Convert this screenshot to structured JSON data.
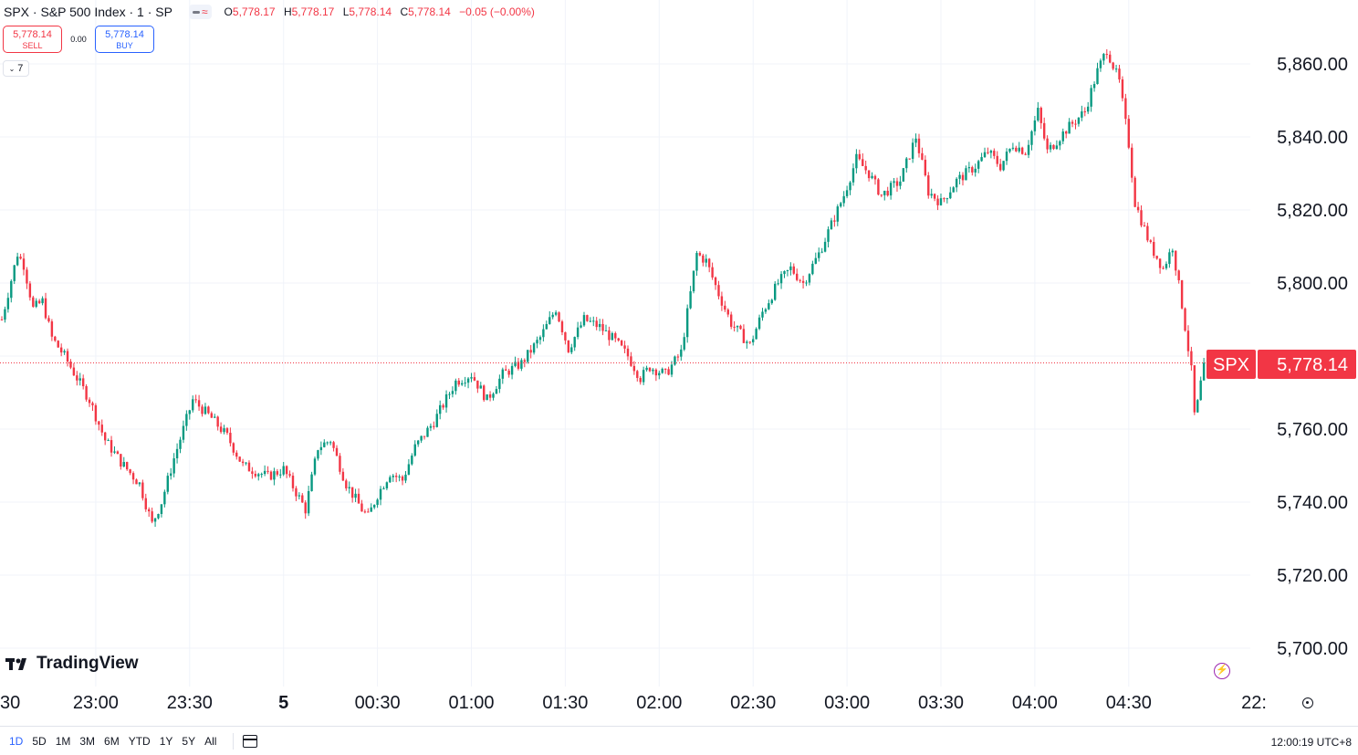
{
  "header": {
    "symbol_title": "SPX · S&P 500 Index · 1 · SP",
    "ohlc": {
      "o_label": "O",
      "o": "5,778.17",
      "h_label": "H",
      "h": "5,778.17",
      "l_label": "L",
      "l": "5,778.14",
      "c_label": "C",
      "c": "5,778.14",
      "change": "−0.05 (−0.00%)"
    }
  },
  "trade": {
    "sell_price": "5,778.14",
    "sell_label": "SELL",
    "spread": "0.00",
    "buy_price": "5,778.14",
    "buy_label": "BUY"
  },
  "indicators_toggle": {
    "count": "7"
  },
  "branding": {
    "logo_text": "TradingView"
  },
  "price_label": {
    "symbol": "SPX",
    "price": "5,778.14"
  },
  "bottom": {
    "ranges": [
      "1D",
      "5D",
      "1M",
      "3M",
      "6M",
      "YTD",
      "1Y",
      "5Y",
      "All"
    ],
    "active_range": "1D",
    "clock": "12:00:19 UTC+8"
  },
  "colors": {
    "up": "#089981",
    "down": "#f23645",
    "grid": "#f0f3fa",
    "accent": "#2962ff"
  },
  "chart_data": {
    "type": "candlestick",
    "y_ticks": [
      5700,
      5720,
      5740,
      5760,
      5780,
      5800,
      5820,
      5840,
      5860
    ],
    "y_tick_labels": [
      "5,700.00",
      "5,720.00",
      "5,740.00",
      "5,760.00",
      "5,780.00",
      "5,800.00",
      "5,820.00",
      "5,840.00",
      "5,860.00"
    ],
    "ylim": [
      5690,
      5877
    ],
    "x_time_labels": [
      {
        "label": "30",
        "t": 0
      },
      {
        "label": "23:00",
        "t": 30
      },
      {
        "label": "23:30",
        "t": 60
      },
      {
        "label": "5",
        "t": 90
      },
      {
        "label": "00:30",
        "t": 120
      },
      {
        "label": "01:00",
        "t": 150
      },
      {
        "label": "01:30",
        "t": 180
      },
      {
        "label": "02:00",
        "t": 210
      },
      {
        "label": "02:30",
        "t": 240
      },
      {
        "label": "03:00",
        "t": 270
      },
      {
        "label": "03:30",
        "t": 300
      },
      {
        "label": "04:00",
        "t": 330
      },
      {
        "label": "04:30",
        "t": 360
      },
      {
        "label": "22:",
        "t": 400
      }
    ],
    "current_price": 5778.14,
    "keypoints": [
      [
        0,
        5790
      ],
      [
        5,
        5808
      ],
      [
        7,
        5805
      ],
      [
        10,
        5793
      ],
      [
        13,
        5795
      ],
      [
        16,
        5785
      ],
      [
        20,
        5780
      ],
      [
        28,
        5768
      ],
      [
        33,
        5757
      ],
      [
        38,
        5751
      ],
      [
        44,
        5745
      ],
      [
        48,
        5734
      ],
      [
        51,
        5740
      ],
      [
        55,
        5752
      ],
      [
        61,
        5768
      ],
      [
        67,
        5763
      ],
      [
        72,
        5758
      ],
      [
        77,
        5750
      ],
      [
        85,
        5747
      ],
      [
        90,
        5749
      ],
      [
        97,
        5738
      ],
      [
        101,
        5755
      ],
      [
        105,
        5757
      ],
      [
        110,
        5745
      ],
      [
        115,
        5738
      ],
      [
        117,
        5736
      ],
      [
        120,
        5742
      ],
      [
        124,
        5748
      ],
      [
        128,
        5746
      ],
      [
        132,
        5755
      ],
      [
        138,
        5762
      ],
      [
        145,
        5773
      ],
      [
        150,
        5775
      ],
      [
        155,
        5768
      ],
      [
        160,
        5775
      ],
      [
        166,
        5778
      ],
      [
        172,
        5785
      ],
      [
        177,
        5793
      ],
      [
        181,
        5782
      ],
      [
        186,
        5790
      ],
      [
        191,
        5788
      ],
      [
        196,
        5784
      ],
      [
        200,
        5780
      ],
      [
        204,
        5774
      ],
      [
        207,
        5777
      ],
      [
        212,
        5775
      ],
      [
        217,
        5781
      ],
      [
        222,
        5808
      ],
      [
        225,
        5806
      ],
      [
        229,
        5797
      ],
      [
        233,
        5789
      ],
      [
        239,
        5783
      ],
      [
        243,
        5792
      ],
      [
        248,
        5800
      ],
      [
        252,
        5804
      ],
      [
        256,
        5800
      ],
      [
        261,
        5808
      ],
      [
        265,
        5816
      ],
      [
        269,
        5824
      ],
      [
        273,
        5834
      ],
      [
        277,
        5830
      ],
      [
        281,
        5824
      ],
      [
        287,
        5828
      ],
      [
        292,
        5840
      ],
      [
        296,
        5825
      ],
      [
        300,
        5822
      ],
      [
        305,
        5828
      ],
      [
        311,
        5832
      ],
      [
        315,
        5836
      ],
      [
        319,
        5832
      ],
      [
        323,
        5838
      ],
      [
        327,
        5836
      ],
      [
        331,
        5847
      ],
      [
        334,
        5836
      ],
      [
        340,
        5842
      ],
      [
        346,
        5847
      ],
      [
        350,
        5858
      ],
      [
        353,
        5864
      ],
      [
        357,
        5855
      ],
      [
        360,
        5838
      ],
      [
        362,
        5822
      ],
      [
        367,
        5810
      ],
      [
        371,
        5804
      ],
      [
        374,
        5810
      ],
      [
        377,
        5794
      ],
      [
        378,
        5788
      ],
      [
        380,
        5776
      ],
      [
        381,
        5764
      ],
      [
        382,
        5767
      ],
      [
        384,
        5778
      ]
    ]
  }
}
